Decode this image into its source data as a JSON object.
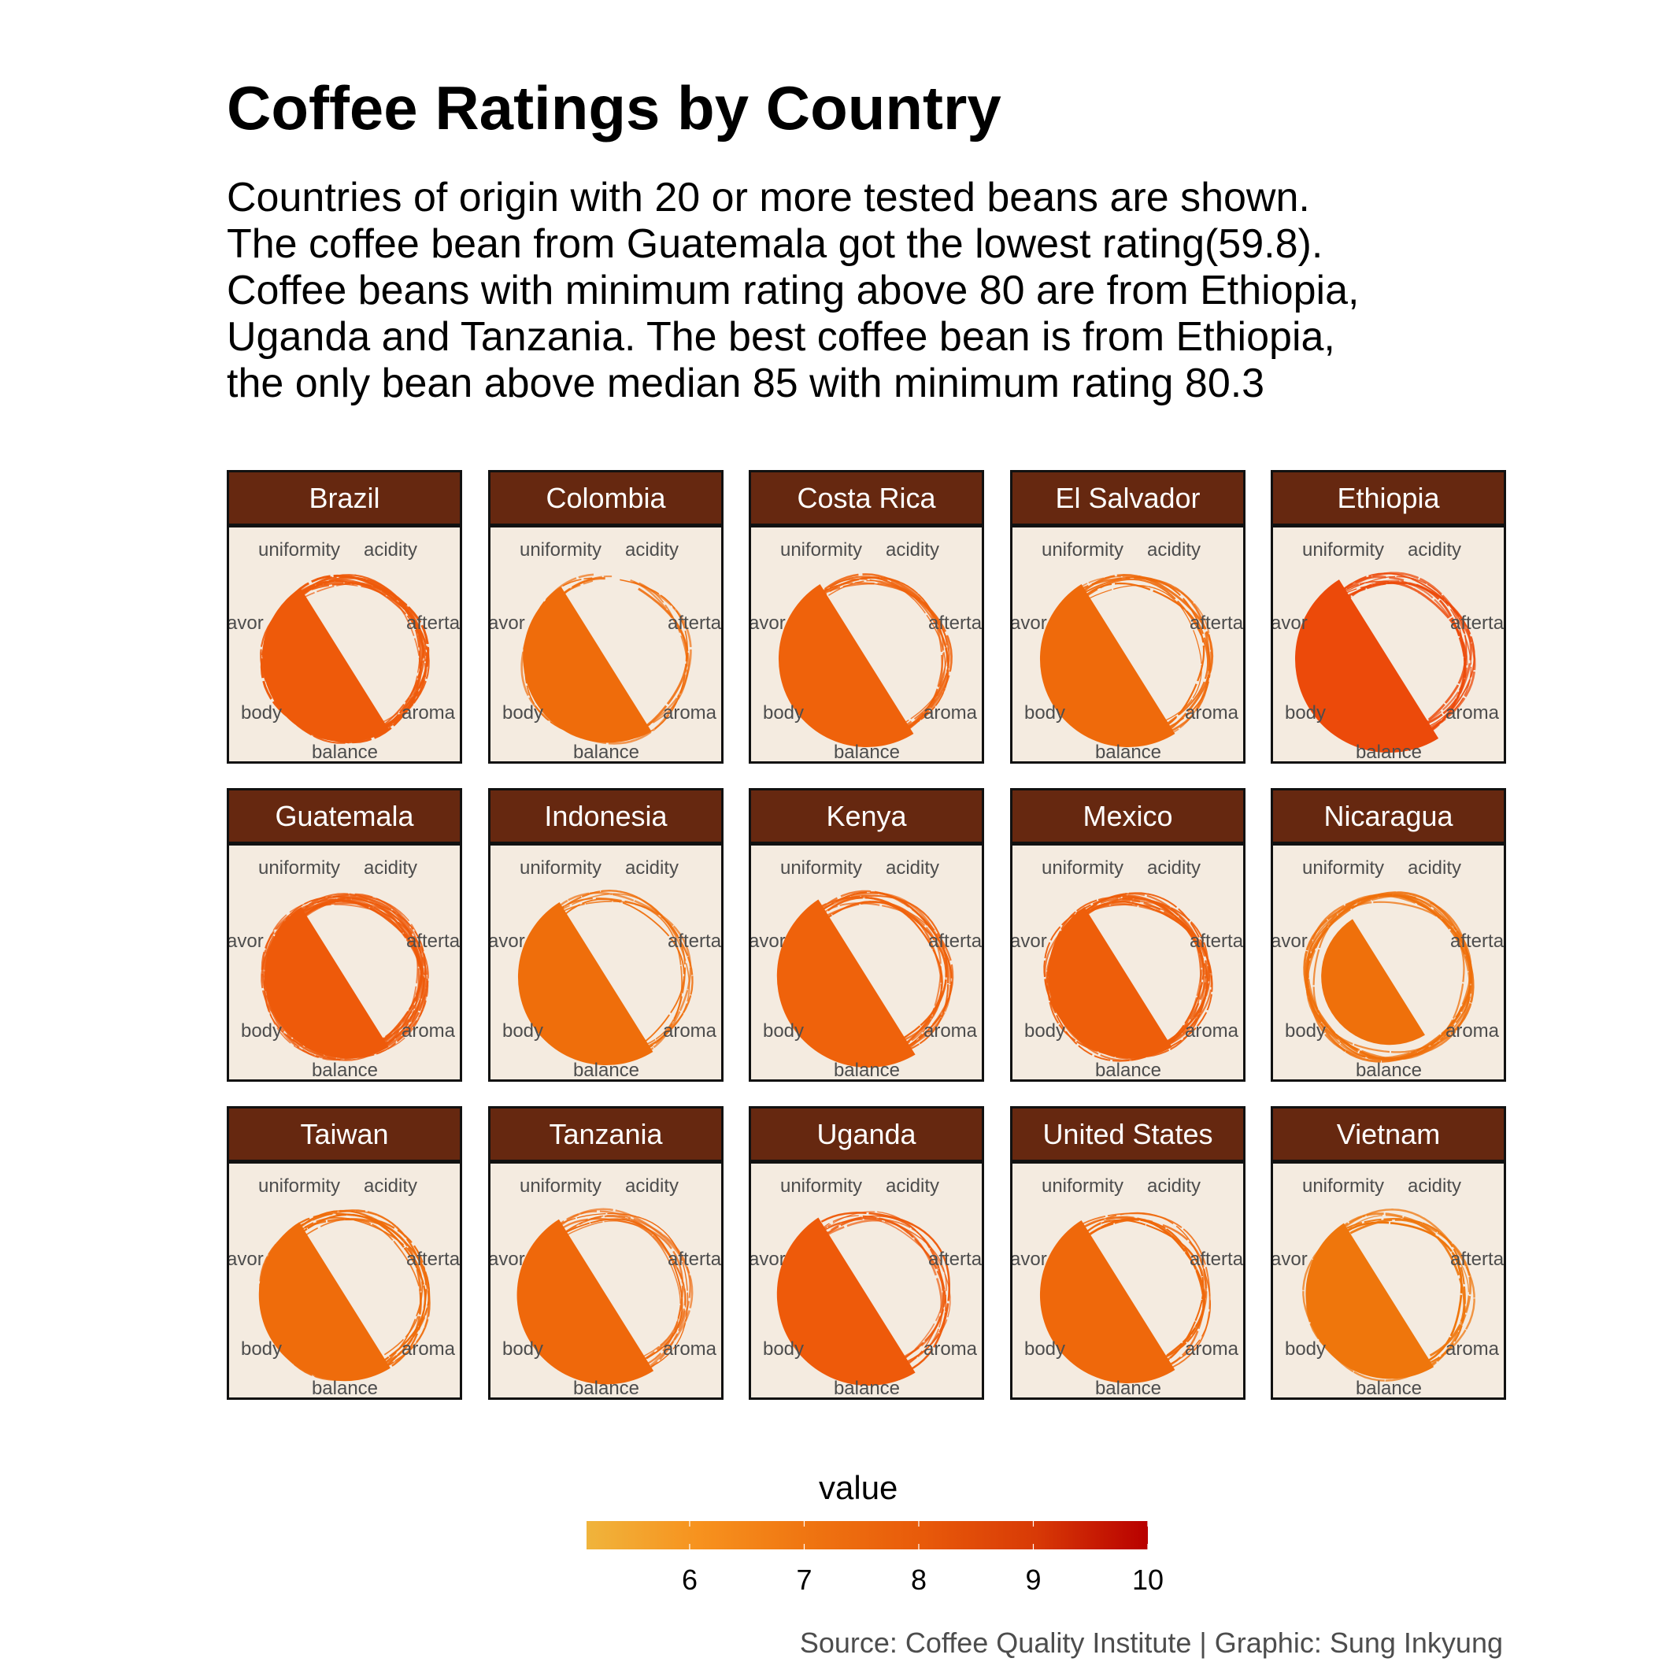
{
  "title": "Coffee Ratings by Country",
  "subtitle": [
    "Countries of origin with 20 or more tested beans are shown.",
    "The coffee bean from Guatemala got the lowest rating(59.8).",
    "Coffee beans with minimum rating above 80 are from Ethiopia,",
    "Uganda and Tanzania. The best coffee bean is from Ethiopia,",
    "the only bean above median 85 with minimum rating 80.3"
  ],
  "caption": "Source: Coffee Quality Institute | Graphic: Sung Inkyung",
  "chart_data": {
    "type": "radial",
    "axes": [
      "uniformity",
      "acidity",
      "aftertaste",
      "aroma",
      "balance",
      "body",
      "flavor"
    ],
    "axis_labels_visible": [
      "uniformity",
      "acidity",
      "afterta",
      "aroma",
      "balance",
      "body",
      "avor"
    ],
    "panels": [
      {
        "country": "Brazil",
        "fill": "#ee5a0a",
        "radius": 7.6,
        "ring_end_deg": 70,
        "rings": 12
      },
      {
        "country": "Colombia",
        "fill": "#ef6c0b",
        "radius": 7.7,
        "ring_end_deg": 28,
        "rings": 5
      },
      {
        "country": "Costa Rica",
        "fill": "#ef620b",
        "radius": 8.0,
        "ring_end_deg": 70,
        "rings": 9
      },
      {
        "country": "El Salvador",
        "fill": "#ef6a0b",
        "radius": 8.0,
        "ring_end_deg": 68,
        "rings": 7
      },
      {
        "country": "Ethiopia",
        "fill": "#ec4a0a",
        "radius": 8.5,
        "ring_end_deg": 42,
        "rings": 9
      },
      {
        "country": "Guatemala",
        "fill": "#ee5a0a",
        "radius": 7.5,
        "ring_end_deg": 70,
        "rings": 14
      },
      {
        "country": "Indonesia",
        "fill": "#ef6e0b",
        "radius": 8.0,
        "ring_end_deg": 70,
        "rings": 6
      },
      {
        "country": "Kenya",
        "fill": "#ef620b",
        "radius": 8.3,
        "ring_end_deg": 70,
        "rings": 9
      },
      {
        "country": "Mexico",
        "fill": "#ee5e0a",
        "radius": 7.5,
        "ring_end_deg": 60,
        "rings": 12
      },
      {
        "country": "Nicaragua",
        "fill": "#ef700b",
        "radius": 6.2,
        "ring_end_deg": 50,
        "rings": 8
      },
      {
        "country": "Taiwan",
        "fill": "#ef6c0b",
        "radius": 7.8,
        "ring_end_deg": 70,
        "rings": 9
      },
      {
        "country": "Tanzania",
        "fill": "#ef680b",
        "radius": 8.1,
        "ring_end_deg": 70,
        "rings": 8
      },
      {
        "country": "Uganda",
        "fill": "#ee5a0a",
        "radius": 8.3,
        "ring_end_deg": 70,
        "rings": 8
      },
      {
        "country": "United States",
        "fill": "#ef680b",
        "radius": 8.0,
        "ring_end_deg": 55,
        "rings": 8
      },
      {
        "country": "Vietnam",
        "fill": "#ef760c",
        "radius": 7.7,
        "ring_end_deg": 60,
        "rings": 6
      }
    ],
    "legend": {
      "title": "value",
      "ticks": [
        "6",
        "7",
        "8",
        "9",
        "10"
      ],
      "range": [
        5.1,
        10
      ],
      "colors": [
        "#f0b43c",
        "#f7921e",
        "#ef7411",
        "#e85a0a",
        "#d83a06",
        "#b80000"
      ]
    }
  }
}
